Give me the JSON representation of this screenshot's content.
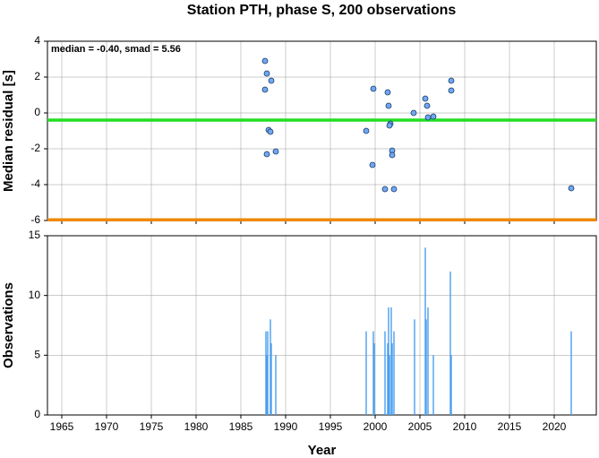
{
  "chart_data": [
    {
      "type": "scatter",
      "title": "Station PTH, phase S, 200 observations",
      "ylabel": "Median residual [s]",
      "annotation": "median = -0.40, smad = 5.56",
      "x": [
        1987.7,
        1987.9,
        1988.4,
        1987.7,
        1988.1,
        1988.3,
        1987.9,
        1988.9,
        1999.0,
        1999.8,
        1999.7,
        2001.1,
        2001.4,
        2001.5,
        2001.7,
        2001.6,
        2001.9,
        2001.9,
        2002.1,
        2004.3,
        2005.6,
        2005.8,
        2005.9,
        2006.5,
        2008.5,
        2008.5,
        2021.9
      ],
      "values": [
        2.9,
        2.2,
        1.8,
        1.3,
        -0.95,
        -1.05,
        -2.3,
        -2.15,
        -1.0,
        1.35,
        -2.9,
        -4.25,
        1.15,
        0.4,
        -0.6,
        -0.7,
        -2.1,
        -2.35,
        -4.25,
        0.0,
        0.8,
        0.4,
        -0.25,
        -0.2,
        1.8,
        1.25,
        -4.2
      ],
      "color": "#6fa8f0",
      "hlines": [
        {
          "value": -0.4,
          "color": "#22dd22"
        },
        {
          "value": -5.96,
          "color": "#ee8800"
        }
      ],
      "xlim": [
        1963.4,
        2024.7
      ],
      "xticks": [
        1965,
        1970,
        1975,
        1980,
        1985,
        1990,
        1995,
        2000,
        2005,
        2010,
        2015,
        2020
      ],
      "ylim": [
        -6,
        4
      ],
      "yticks": [
        -6,
        -4,
        -2,
        0,
        2,
        4
      ],
      "grid": true
    },
    {
      "type": "bar",
      "ylabel": "Observations",
      "xlabel": "Year",
      "x": [
        1987.8,
        1987.9,
        1988.0,
        1988.3,
        1988.4,
        1988.9,
        1999.0,
        1999.8,
        1999.9,
        2001.1,
        2001.4,
        2001.5,
        2001.6,
        2001.8,
        2001.9,
        2002.1,
        2004.4,
        2005.6,
        2005.7,
        2005.9,
        2006.5,
        2008.4,
        2008.5,
        2021.9
      ],
      "values": [
        7,
        5,
        7,
        8,
        6,
        5,
        7,
        7,
        6,
        7,
        6,
        9,
        5,
        9,
        6,
        7,
        8,
        14,
        8,
        9,
        5,
        12,
        5,
        7
      ],
      "color": "#4a9ef0",
      "xlim": [
        1963.4,
        2024.7
      ],
      "xticks": [
        1965,
        1970,
        1975,
        1980,
        1985,
        1990,
        1995,
        2000,
        2005,
        2010,
        2015,
        2020
      ],
      "ylim": [
        0,
        15
      ],
      "yticks": [
        0,
        5,
        10,
        15
      ],
      "grid": true
    }
  ]
}
